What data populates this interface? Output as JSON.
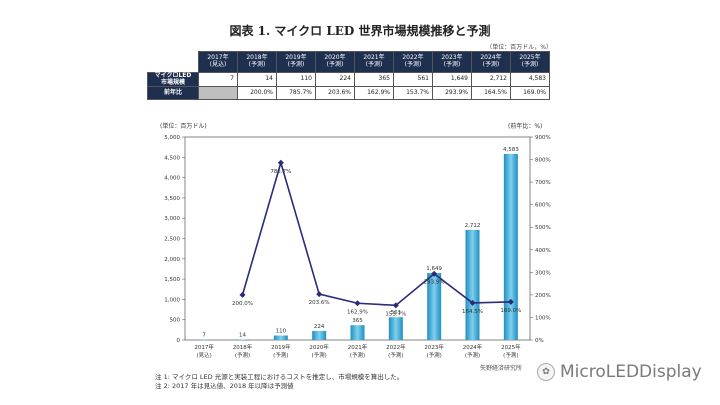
{
  "title": "図表 1. マイクロ LED 世界市場規模推移と予測",
  "table": {
    "unit": "（単位：百万ドル，%）",
    "years": [
      {
        "y": "2017年",
        "s": "(見込)"
      },
      {
        "y": "2018年",
        "s": "(予測)"
      },
      {
        "y": "2019年",
        "s": "(予測)"
      },
      {
        "y": "2020年",
        "s": "(予測)"
      },
      {
        "y": "2021年",
        "s": "(予測)"
      },
      {
        "y": "2022年",
        "s": "(予測)"
      },
      {
        "y": "2023年",
        "s": "(予測)"
      },
      {
        "y": "2024年",
        "s": "(予測)"
      },
      {
        "y": "2025年",
        "s": "(予測)"
      }
    ],
    "row1_label_a": "マイクロLED",
    "row1_label_b": "市場規模",
    "row2_label": "前年比",
    "market": [
      "7",
      "14",
      "110",
      "224",
      "365",
      "561",
      "1,649",
      "2,712",
      "4,583"
    ],
    "yoy": [
      "",
      "200.0%",
      "785.7%",
      "203.6%",
      "162.9%",
      "153.7%",
      "293.9%",
      "164.5%",
      "169.0%"
    ]
  },
  "chart_data": {
    "type": "bar",
    "categories": [
      "2017年",
      "2018年",
      "2019年",
      "2020年",
      "2021年",
      "2022年",
      "2023年",
      "2024年",
      "2025年"
    ],
    "category_sub": [
      "(見込)",
      "(予測)",
      "(予測)",
      "(予測)",
      "(予測)",
      "(予測)",
      "(予測)",
      "(予測)",
      "(予測)"
    ],
    "series": [
      {
        "name": "市場規模",
        "type": "bar",
        "axis": "left",
        "values": [
          7,
          14,
          110,
          224,
          365,
          561,
          1649,
          2712,
          4583
        ],
        "labels": [
          "7",
          "14",
          "110",
          "224",
          "365",
          "561",
          "1,649",
          "2,712",
          "4,583"
        ]
      },
      {
        "name": "前年比",
        "type": "line",
        "axis": "right",
        "values": [
          null,
          200.0,
          785.7,
          203.6,
          162.9,
          153.7,
          293.9,
          164.5,
          169.0
        ],
        "labels": [
          "",
          "200.0%",
          "785.7%",
          "203.6%",
          "162.9%",
          "153.7%",
          "293.9%",
          "164.5%",
          "169.0%"
        ]
      }
    ],
    "ylabel_left": "(単位：百万ドル)",
    "ylabel_right": "(前年比：%)",
    "ylim_left": [
      0,
      5000
    ],
    "ylim_right": [
      0,
      900
    ],
    "yticks_left": [
      "0",
      "500",
      "1,000",
      "1,500",
      "2,000",
      "2,500",
      "3,000",
      "3,500",
      "4,000",
      "4,500",
      "5,000"
    ],
    "yticks_right": [
      "0%",
      "100%",
      "200%",
      "300%",
      "400%",
      "500%",
      "600%",
      "700%",
      "800%",
      "900%"
    ],
    "colors": {
      "bar": "#1f8fc0",
      "bar_light": "#7fd0ee",
      "line": "#2b2b7a"
    }
  },
  "notes": [
    "注 1: マイクロ LED 光源と実装工程におけるコストを推定し、市場規模を算出した。",
    "注 2: 2017 年は見込値、2018 年以降は予測値"
  ],
  "source": "矢野経済研究所",
  "watermark": "MicroLEDDisplay"
}
